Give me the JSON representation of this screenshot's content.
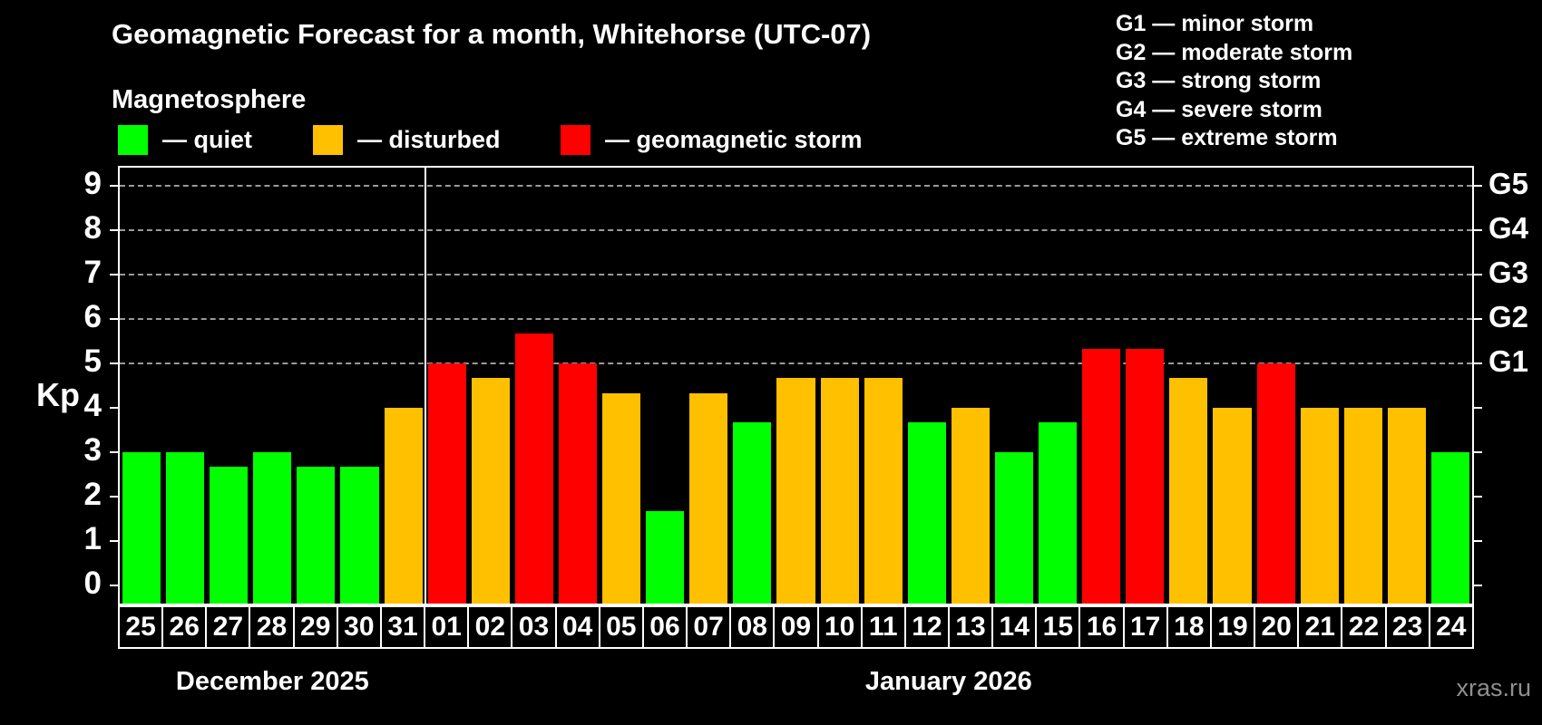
{
  "title": "Geomagnetic Forecast for a month, Whitehorse (UTC-07)",
  "legend": {
    "heading": "Magnetosphere",
    "items": [
      {
        "key": "quiet",
        "label": "— quiet",
        "color": "#00ff00"
      },
      {
        "key": "disturbed",
        "label": "— disturbed",
        "color": "#ffc000"
      },
      {
        "key": "storm",
        "label": "— geomagnetic storm",
        "color": "#ff0000"
      }
    ]
  },
  "storm_scale": {
    "items": [
      {
        "code": "G1",
        "label": "G1 — minor storm",
        "kp": 5
      },
      {
        "code": "G2",
        "label": "G2 — moderate storm",
        "kp": 6
      },
      {
        "code": "G3",
        "label": "G3 — strong storm",
        "kp": 7
      },
      {
        "code": "G4",
        "label": "G4 — severe storm",
        "kp": 8
      },
      {
        "code": "G5",
        "label": "G5 — extreme storm",
        "kp": 9
      }
    ]
  },
  "axes": {
    "y_label": "Kp",
    "y_ticks": [
      0,
      1,
      2,
      3,
      4,
      5,
      6,
      7,
      8,
      9
    ],
    "gridlines_at": [
      5,
      6,
      7,
      8,
      9
    ]
  },
  "watermark": "xras.ru",
  "chart_data": {
    "type": "bar",
    "title": "Geomagnetic Forecast for a month, Whitehorse (UTC-07)",
    "xlabel": "",
    "ylabel": "Kp",
    "ylim": [
      0,
      9
    ],
    "grid": "dashed horizontal at Kp 5-9 only",
    "legend_position": "top-left",
    "right_axis_labels": [
      {
        "label": "G1",
        "kp": 5
      },
      {
        "label": "G2",
        "kp": 6
      },
      {
        "label": "G3",
        "kp": 7
      },
      {
        "label": "G4",
        "kp": 8
      },
      {
        "label": "G5",
        "kp": 9
      }
    ],
    "months": [
      {
        "label": "December 2025",
        "days": 7
      },
      {
        "label": "January 2026",
        "days": 24
      }
    ],
    "categories": [
      "25",
      "26",
      "27",
      "28",
      "29",
      "30",
      "31",
      "01",
      "02",
      "03",
      "04",
      "05",
      "06",
      "07",
      "08",
      "09",
      "10",
      "11",
      "12",
      "13",
      "14",
      "15",
      "16",
      "17",
      "18",
      "19",
      "20",
      "21",
      "22",
      "23",
      "24"
    ],
    "values": [
      3,
      3,
      2.67,
      3,
      2.67,
      2.67,
      4,
      5,
      4.67,
      5.67,
      5,
      4.33,
      1.67,
      4.33,
      3.67,
      4.67,
      4.67,
      4.67,
      3.67,
      4,
      3,
      3.67,
      5.33,
      5.33,
      4.67,
      4,
      5,
      4,
      4,
      4,
      3
    ],
    "levels": [
      "quiet",
      "quiet",
      "quiet",
      "quiet",
      "quiet",
      "quiet",
      "disturbed",
      "storm",
      "disturbed",
      "storm",
      "storm",
      "disturbed",
      "quiet",
      "disturbed",
      "quiet",
      "disturbed",
      "disturbed",
      "disturbed",
      "quiet",
      "disturbed",
      "quiet",
      "quiet",
      "storm",
      "storm",
      "disturbed",
      "disturbed",
      "storm",
      "disturbed",
      "disturbed",
      "disturbed",
      "quiet"
    ]
  }
}
